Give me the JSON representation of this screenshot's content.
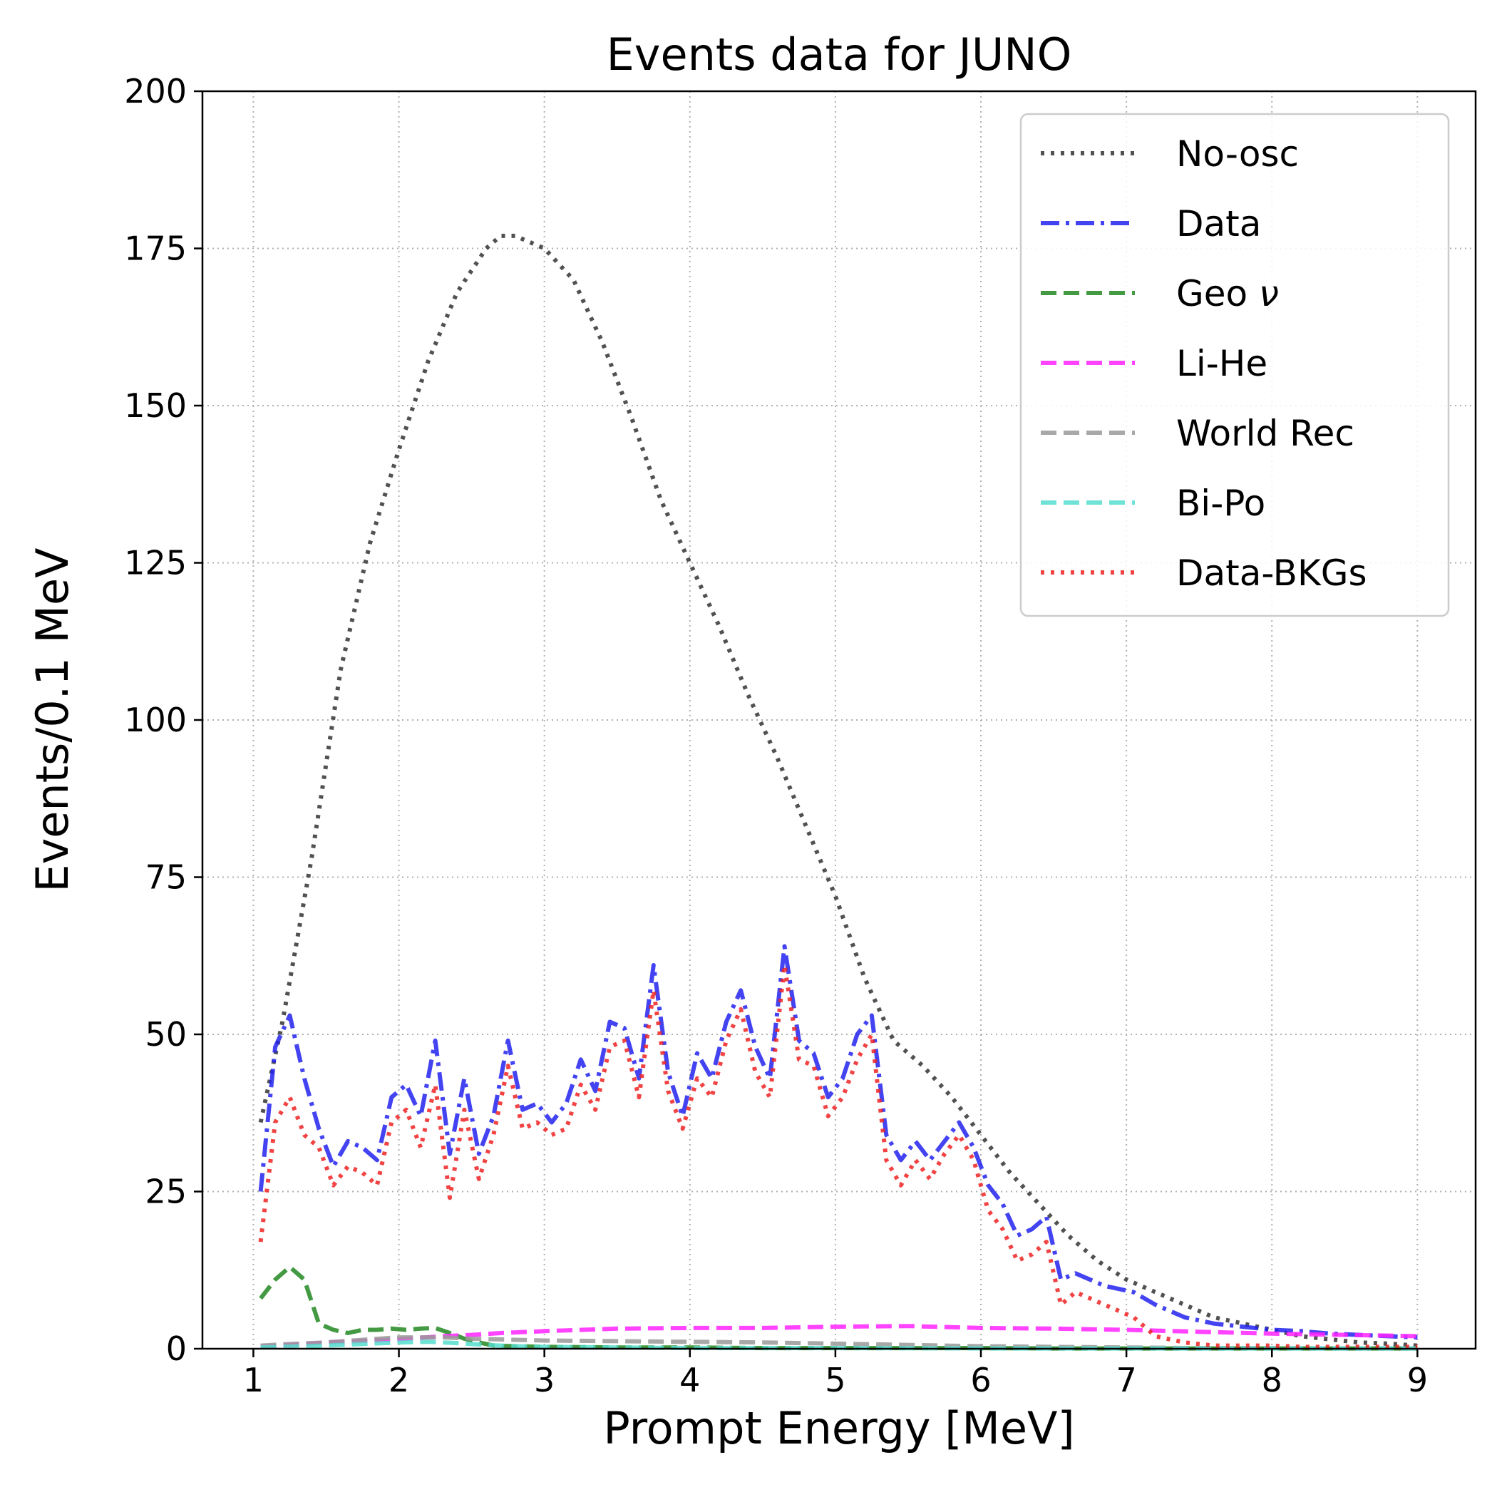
{
  "chart_data": {
    "type": "line",
    "title": "Events data for JUNO",
    "xlabel": "Prompt Energy [MeV]",
    "ylabel": "Events/0.1 MeV",
    "xlim": [
      0.65,
      9.4
    ],
    "ylim": [
      0,
      200
    ],
    "xticks": [
      1,
      2,
      3,
      4,
      5,
      6,
      7,
      8,
      9
    ],
    "yticks": [
      0,
      25,
      50,
      75,
      100,
      125,
      150,
      175,
      200
    ],
    "grid": true,
    "legend_position": "top-right",
    "series": [
      {
        "name": "No-osc",
        "label_parts": [
          "No-osc"
        ],
        "color": "#333333",
        "style": "dotted",
        "x": [
          1.05,
          1.2,
          1.4,
          1.6,
          1.8,
          2.0,
          2.2,
          2.4,
          2.6,
          2.7,
          2.8,
          3.0,
          3.2,
          3.4,
          3.6,
          3.8,
          4.0,
          4.2,
          4.4,
          4.6,
          4.8,
          5.0,
          5.2,
          5.4,
          5.6,
          5.8,
          6.0,
          6.2,
          6.4,
          6.6,
          6.8,
          7.0,
          7.2,
          7.4,
          7.6,
          7.8,
          8.0,
          8.2,
          8.4,
          8.6,
          8.8,
          9.0
        ],
        "y": [
          36,
          52,
          78,
          108,
          128,
          143,
          157,
          168,
          175,
          177,
          177,
          175,
          170,
          160,
          148,
          135,
          125,
          115,
          104,
          94,
          83,
          72,
          59,
          49,
          45,
          40,
          34,
          28,
          23,
          18,
          14,
          11,
          9,
          7,
          5,
          4,
          3,
          2,
          1.5,
          1,
          0.8,
          0.5
        ]
      },
      {
        "name": "Data",
        "label_parts": [
          "Data"
        ],
        "color": "#2222ee",
        "style": "dashdot",
        "x": [
          1.05,
          1.15,
          1.25,
          1.35,
          1.45,
          1.55,
          1.65,
          1.75,
          1.85,
          1.95,
          2.05,
          2.15,
          2.25,
          2.35,
          2.45,
          2.55,
          2.65,
          2.75,
          2.85,
          2.95,
          3.05,
          3.15,
          3.25,
          3.35,
          3.45,
          3.55,
          3.65,
          3.75,
          3.85,
          3.95,
          4.05,
          4.15,
          4.25,
          4.35,
          4.45,
          4.55,
          4.65,
          4.75,
          4.85,
          4.95,
          5.05,
          5.15,
          5.25,
          5.35,
          5.45,
          5.55,
          5.65,
          5.75,
          5.85,
          5.95,
          6.05,
          6.15,
          6.25,
          6.35,
          6.45,
          6.55,
          6.65,
          6.75,
          6.85,
          6.95,
          7.05,
          7.2,
          7.4,
          7.6,
          7.8,
          8.0,
          8.2,
          8.4,
          8.6,
          8.8,
          9.0
        ],
        "y": [
          25,
          48,
          53,
          43,
          35,
          29,
          33,
          32,
          30,
          40,
          42,
          37,
          49,
          31,
          43,
          31,
          37,
          49,
          38,
          39,
          36,
          39,
          46,
          41,
          52,
          51,
          43,
          61,
          44,
          37,
          47,
          43,
          52,
          57,
          48,
          43,
          64,
          49,
          47,
          40,
          43,
          50,
          53,
          34,
          30,
          33,
          30,
          33,
          36,
          32,
          26,
          23,
          18,
          19,
          21,
          11,
          12,
          11,
          10,
          9.5,
          9,
          7,
          5,
          4,
          3.5,
          3,
          2.8,
          2.4,
          2.2,
          2,
          1.8
        ]
      },
      {
        "name": "Geo ν",
        "label_parts": [
          "Geo ",
          "ν"
        ],
        "color": "#228822",
        "style": "dashed",
        "x": [
          1.05,
          1.15,
          1.25,
          1.35,
          1.45,
          1.55,
          1.65,
          1.75,
          1.85,
          1.95,
          2.05,
          2.15,
          2.25,
          2.35,
          2.45,
          2.55,
          2.65,
          2.8,
          3.0,
          3.5,
          4.0,
          4.5,
          5.0,
          5.5,
          6.0,
          6.5,
          7.0,
          7.5,
          8.0,
          8.5,
          9.0
        ],
        "y": [
          8,
          11,
          13,
          11,
          4,
          3,
          2.5,
          3,
          3,
          3.2,
          3,
          3.2,
          3.3,
          2.5,
          1.6,
          1,
          0.5,
          0.4,
          0.3,
          0.2,
          0.2,
          0.1,
          0.1,
          0.1,
          0.1,
          0.05,
          0.05,
          0.05,
          0.05,
          0.05,
          0.05
        ]
      },
      {
        "name": "Li-He",
        "label_parts": [
          "Li-He"
        ],
        "color": "#ff22ff",
        "style": "dashed",
        "x": [
          1.05,
          1.5,
          2.0,
          2.3,
          2.5,
          2.7,
          3.0,
          3.5,
          4.0,
          4.5,
          5.0,
          5.5,
          6.0,
          6.5,
          7.0,
          7.5,
          8.0,
          8.5,
          9.0
        ],
        "y": [
          0.3,
          1,
          1.5,
          2,
          2.2,
          2.5,
          2.8,
          3.2,
          3.3,
          3.3,
          3.5,
          3.6,
          3.3,
          3.2,
          3,
          2.7,
          2.4,
          2.2,
          2
        ]
      },
      {
        "name": "World Rec",
        "label_parts": [
          "World Rec"
        ],
        "color": "#999999",
        "style": "dashed",
        "x": [
          1.05,
          1.2,
          1.5,
          1.8,
          2.0,
          2.3,
          2.5,
          3.0,
          3.5,
          4.0,
          4.5,
          5.0,
          5.5,
          6.0,
          6.5,
          7.0,
          7.5,
          8.0,
          8.5,
          9.0
        ],
        "y": [
          0.5,
          0.7,
          1,
          1.5,
          1.8,
          1.8,
          1.6,
          1.3,
          1.2,
          1.1,
          1,
          0.8,
          0.6,
          0.4,
          0.3,
          0.2,
          0.1,
          0.1,
          0.05,
          0.05
        ]
      },
      {
        "name": "Bi-Po",
        "label_parts": [
          "Bi-Po"
        ],
        "color": "#55ddcc",
        "style": "dashed",
        "x": [
          1.05,
          1.5,
          1.8,
          2.0,
          2.2,
          2.4,
          2.6,
          2.8,
          3.0,
          3.5,
          4.0,
          5.0,
          6.0,
          7.0,
          8.0,
          9.0
        ],
        "y": [
          0.2,
          0.5,
          0.8,
          1,
          1.1,
          0.9,
          0.6,
          0.4,
          0.3,
          0.2,
          0.1,
          0.1,
          0.05,
          0.05,
          0.05,
          0.05
        ]
      },
      {
        "name": "Data-BKGs",
        "label_parts": [
          "Data-BKGs"
        ],
        "color": "#ee2222",
        "style": "dotted",
        "x": [
          1.05,
          1.15,
          1.25,
          1.35,
          1.45,
          1.55,
          1.65,
          1.75,
          1.85,
          1.95,
          2.05,
          2.15,
          2.25,
          2.35,
          2.45,
          2.55,
          2.65,
          2.75,
          2.85,
          2.95,
          3.05,
          3.15,
          3.25,
          3.35,
          3.45,
          3.55,
          3.65,
          3.75,
          3.85,
          3.95,
          4.05,
          4.15,
          4.25,
          4.35,
          4.45,
          4.55,
          4.65,
          4.75,
          4.85,
          4.95,
          5.05,
          5.15,
          5.25,
          5.35,
          5.45,
          5.55,
          5.65,
          5.75,
          5.85,
          5.95,
          6.05,
          6.15,
          6.25,
          6.35,
          6.45,
          6.55,
          6.65,
          6.75,
          6.85,
          6.95,
          7.05,
          7.2,
          7.4,
          7.6,
          7.8,
          8.0,
          8.2,
          8.4,
          8.6,
          8.8,
          9.0
        ],
        "y": [
          17,
          36,
          40,
          34,
          32,
          26,
          29,
          28,
          26,
          36,
          38,
          32,
          42,
          24,
          38,
          27,
          34,
          45,
          35,
          36,
          34,
          35,
          42,
          38,
          48,
          49,
          40,
          57,
          41,
          35,
          43,
          40,
          49,
          54,
          44,
          40,
          61,
          46,
          45,
          37,
          40,
          46,
          50,
          30,
          26,
          30,
          27,
          31,
          34,
          30,
          22,
          19,
          14,
          15,
          17,
          7,
          9,
          8,
          7,
          6,
          5,
          2,
          1,
          0.5,
          0.5,
          0.5,
          0.3,
          0.3,
          0.3,
          0.3,
          0.3
        ]
      }
    ]
  }
}
